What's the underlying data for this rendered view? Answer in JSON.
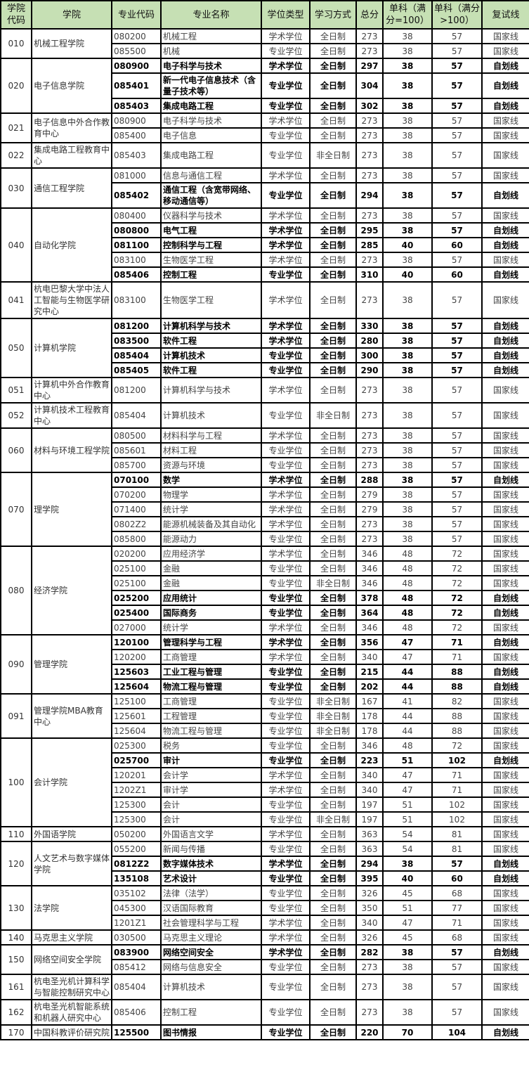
{
  "header": [
    "学院代码",
    "学院",
    "专业代码",
    "专业名称",
    "学位类型",
    "学习方式",
    "总分",
    "单科（满分=100）",
    "单科（满分>100）",
    "复试线"
  ],
  "groups": [
    {
      "code": "010",
      "college": "机械工程学院",
      "rows": [
        [
          "080200",
          "机械工程",
          "学术学位",
          "全日制",
          "273",
          "38",
          "57",
          "国家线"
        ],
        [
          "085500",
          "机械",
          "专业学位",
          "全日制",
          "273",
          "38",
          "57",
          "国家线"
        ]
      ]
    },
    {
      "code": "020",
      "college": "电子信息学院",
      "rows": [
        [
          "080900",
          "电子科学与技术",
          "学术学位",
          "全日制",
          "297",
          "38",
          "57",
          "自划线"
        ],
        [
          "085401",
          "新一代电子信息技术（含量子技术等）",
          "专业学位",
          "全日制",
          "304",
          "38",
          "57",
          "自划线"
        ],
        [
          "085403",
          "集成电路工程",
          "专业学位",
          "全日制",
          "302",
          "38",
          "57",
          "自划线"
        ]
      ]
    },
    {
      "code": "021",
      "college": "电子信息中外合作教育中心",
      "rows": [
        [
          "080900",
          "电子科学与技术",
          "学术学位",
          "全日制",
          "273",
          "38",
          "57",
          "国家线"
        ],
        [
          "085400",
          "电子信息",
          "专业学位",
          "全日制",
          "273",
          "38",
          "57",
          "国家线"
        ]
      ]
    },
    {
      "code": "022",
      "college": "集成电路工程教育中心",
      "rows": [
        [
          "085403",
          "集成电路工程",
          "专业学位",
          "非全日制",
          "273",
          "38",
          "57",
          "国家线"
        ]
      ]
    },
    {
      "code": "030",
      "college": "通信工程学院",
      "rows": [
        [
          "081000",
          "信息与通信工程",
          "学术学位",
          "全日制",
          "273",
          "38",
          "57",
          "国家线"
        ],
        [
          "085402",
          "通信工程（含宽带网络、移动通信等）",
          "专业学位",
          "全日制",
          "294",
          "38",
          "57",
          "自划线"
        ]
      ]
    },
    {
      "code": "040",
      "college": "自动化学院",
      "rows": [
        [
          "080400",
          "仪器科学与技术",
          "学术学位",
          "全日制",
          "273",
          "38",
          "57",
          "国家线"
        ],
        [
          "080800",
          "电气工程",
          "学术学位",
          "全日制",
          "295",
          "38",
          "57",
          "自划线"
        ],
        [
          "081100",
          "控制科学与工程",
          "学术学位",
          "全日制",
          "285",
          "40",
          "60",
          "自划线"
        ],
        [
          "083100",
          "生物医学工程",
          "学术学位",
          "全日制",
          "273",
          "38",
          "57",
          "国家线"
        ],
        [
          "085406",
          "控制工程",
          "专业学位",
          "全日制",
          "310",
          "40",
          "60",
          "自划线"
        ]
      ]
    },
    {
      "code": "041",
      "college": "杭电巴黎大学中法人工智能与生物医学研究中心",
      "rows": [
        [
          "083100",
          "生物医学工程",
          "学术学位",
          "全日制",
          "273",
          "38",
          "57",
          "国家线"
        ]
      ]
    },
    {
      "code": "050",
      "college": "计算机学院",
      "rows": [
        [
          "081200",
          "计算机科学与技术",
          "学术学位",
          "全日制",
          "330",
          "38",
          "57",
          "自划线"
        ],
        [
          "083500",
          "软件工程",
          "学术学位",
          "全日制",
          "280",
          "38",
          "57",
          "自划线"
        ],
        [
          "085404",
          "计算机技术",
          "专业学位",
          "全日制",
          "300",
          "38",
          "57",
          "自划线"
        ],
        [
          "085405",
          "软件工程",
          "专业学位",
          "全日制",
          "290",
          "38",
          "57",
          "自划线"
        ]
      ]
    },
    {
      "code": "051",
      "college": "计算机中外合作教育中心",
      "rows": [
        [
          "081200",
          "计算机科学与技术",
          "学术学位",
          "全日制",
          "273",
          "38",
          "57",
          "国家线"
        ]
      ]
    },
    {
      "code": "052",
      "college": "计算机技术工程教育中心",
      "rows": [
        [
          "085404",
          "计算机技术",
          "专业学位",
          "非全日制",
          "273",
          "38",
          "57",
          "国家线"
        ]
      ]
    },
    {
      "code": "060",
      "college": "材料与环境工程学院",
      "rows": [
        [
          "080500",
          "材料科学与工程",
          "学术学位",
          "全日制",
          "273",
          "38",
          "57",
          "国家线"
        ],
        [
          "085601",
          "材料工程",
          "专业学位",
          "全日制",
          "273",
          "38",
          "57",
          "国家线"
        ],
        [
          "085700",
          "资源与环境",
          "专业学位",
          "全日制",
          "273",
          "38",
          "57",
          "国家线"
        ]
      ]
    },
    {
      "code": "070",
      "college": "理学院",
      "rows": [
        [
          "070100",
          "数学",
          "学术学位",
          "全日制",
          "288",
          "38",
          "57",
          "自划线"
        ],
        [
          "070200",
          "物理学",
          "学术学位",
          "全日制",
          "279",
          "38",
          "57",
          "国家线"
        ],
        [
          "071400",
          "统计学",
          "学术学位",
          "全日制",
          "279",
          "38",
          "57",
          "国家线"
        ],
        [
          "0802Z2",
          "能源机械装备及其自动化",
          "学术学位",
          "全日制",
          "273",
          "38",
          "57",
          "国家线"
        ],
        [
          "085800",
          "能源动力",
          "专业学位",
          "全日制",
          "273",
          "38",
          "57",
          "国家线"
        ]
      ]
    },
    {
      "code": "080",
      "college": "经济学院",
      "rows": [
        [
          "020200",
          "应用经济学",
          "学术学位",
          "全日制",
          "346",
          "48",
          "72",
          "国家线"
        ],
        [
          "025100",
          "金融",
          "专业学位",
          "全日制",
          "346",
          "48",
          "72",
          "国家线"
        ],
        [
          "025100",
          "金融",
          "专业学位",
          "非全日制",
          "346",
          "48",
          "72",
          "国家线"
        ],
        [
          "025200",
          "应用统计",
          "专业学位",
          "全日制",
          "378",
          "48",
          "72",
          "自划线"
        ],
        [
          "025400",
          "国际商务",
          "专业学位",
          "全日制",
          "364",
          "48",
          "72",
          "自划线"
        ],
        [
          "027000",
          "统计学",
          "学术学位",
          "全日制",
          "346",
          "48",
          "72",
          "国家线"
        ]
      ]
    },
    {
      "code": "090",
      "college": "管理学院",
      "rows": [
        [
          "120100",
          "管理科学与工程",
          "学术学位",
          "全日制",
          "356",
          "47",
          "71",
          "自划线"
        ],
        [
          "120200",
          "工商管理",
          "学术学位",
          "全日制",
          "340",
          "47",
          "71",
          "国家线"
        ],
        [
          "125603",
          "工业工程与管理",
          "专业学位",
          "全日制",
          "215",
          "44",
          "88",
          "自划线"
        ],
        [
          "125604",
          "物流工程与管理",
          "专业学位",
          "全日制",
          "202",
          "44",
          "88",
          "自划线"
        ]
      ]
    },
    {
      "code": "091",
      "college": "管理学院MBA教育中心",
      "rows": [
        [
          "125100",
          "工商管理",
          "专业学位",
          "非全日制",
          "167",
          "41",
          "82",
          "国家线"
        ],
        [
          "125601",
          "工程管理",
          "专业学位",
          "非全日制",
          "178",
          "44",
          "88",
          "国家线"
        ],
        [
          "125604",
          "物流工程与管理",
          "专业学位",
          "非全日制",
          "178",
          "44",
          "88",
          "国家线"
        ]
      ]
    },
    {
      "code": "100",
      "college": "会计学院",
      "rows": [
        [
          "025300",
          "税务",
          "专业学位",
          "全日制",
          "346",
          "48",
          "72",
          "国家线"
        ],
        [
          "025700",
          "审计",
          "专业学位",
          "全日制",
          "223",
          "51",
          "102",
          "自划线"
        ],
        [
          "120201",
          "会计学",
          "学术学位",
          "全日制",
          "340",
          "47",
          "71",
          "国家线"
        ],
        [
          "1202Z1",
          "审计学",
          "学术学位",
          "全日制",
          "340",
          "47",
          "71",
          "国家线"
        ],
        [
          "125300",
          "会计",
          "专业学位",
          "全日制",
          "197",
          "51",
          "102",
          "国家线"
        ],
        [
          "125300",
          "会计",
          "专业学位",
          "非全日制",
          "197",
          "51",
          "102",
          "国家线"
        ]
      ]
    },
    {
      "code": "110",
      "college": "外国语学院",
      "rows": [
        [
          "050200",
          "外国语言文学",
          "学术学位",
          "全日制",
          "363",
          "54",
          "81",
          "国家线"
        ]
      ]
    },
    {
      "code": "120",
      "college": "人文艺术与数字媒体学院",
      "rows": [
        [
          "055200",
          "新闻与传播",
          "专业学位",
          "全日制",
          "363",
          "54",
          "81",
          "国家线"
        ],
        [
          "0812Z2",
          "数字媒体技术",
          "学术学位",
          "全日制",
          "294",
          "38",
          "57",
          "自划线"
        ],
        [
          "135108",
          "艺术设计",
          "专业学位",
          "全日制",
          "395",
          "40",
          "60",
          "自划线"
        ]
      ]
    },
    {
      "code": "130",
      "college": "法学院",
      "rows": [
        [
          "035102",
          "法律（法学）",
          "专业学位",
          "全日制",
          "326",
          "45",
          "68",
          "国家线"
        ],
        [
          "045300",
          "汉语国际教育",
          "专业学位",
          "全日制",
          "350",
          "51",
          "77",
          "国家线"
        ],
        [
          "1201Z1",
          "社会管理科学与工程",
          "学术学位",
          "全日制",
          "340",
          "47",
          "71",
          "国家线"
        ]
      ]
    },
    {
      "code": "140",
      "college": "马克思主义学院",
      "rows": [
        [
          "030500",
          "马克思主义理论",
          "学术学位",
          "全日制",
          "326",
          "45",
          "68",
          "国家线"
        ]
      ]
    },
    {
      "code": "150",
      "college": "网络空间安全学院",
      "rows": [
        [
          "083900",
          "网络空间安全",
          "学术学位",
          "全日制",
          "282",
          "38",
          "57",
          "自划线"
        ],
        [
          "085412",
          "网络与信息安全",
          "专业学位",
          "全日制",
          "273",
          "38",
          "57",
          "国家线"
        ]
      ]
    },
    {
      "code": "161",
      "college": "杭电圣光机计算科学与智能控制研究中心",
      "rows": [
        [
          "085404",
          "计算机技术",
          "专业学位",
          "全日制",
          "273",
          "38",
          "57",
          "国家线"
        ]
      ]
    },
    {
      "code": "162",
      "college": "杭电圣光机智能系统和机器人研究中心",
      "rows": [
        [
          "085406",
          "控制工程",
          "专业学位",
          "全日制",
          "273",
          "38",
          "57",
          "国家线"
        ]
      ]
    },
    {
      "code": "170",
      "college": "中国科教评价研究院",
      "rows": [
        [
          "125500",
          "图书情报",
          "专业学位",
          "全日制",
          "220",
          "70",
          "104",
          "自划线"
        ]
      ]
    }
  ]
}
